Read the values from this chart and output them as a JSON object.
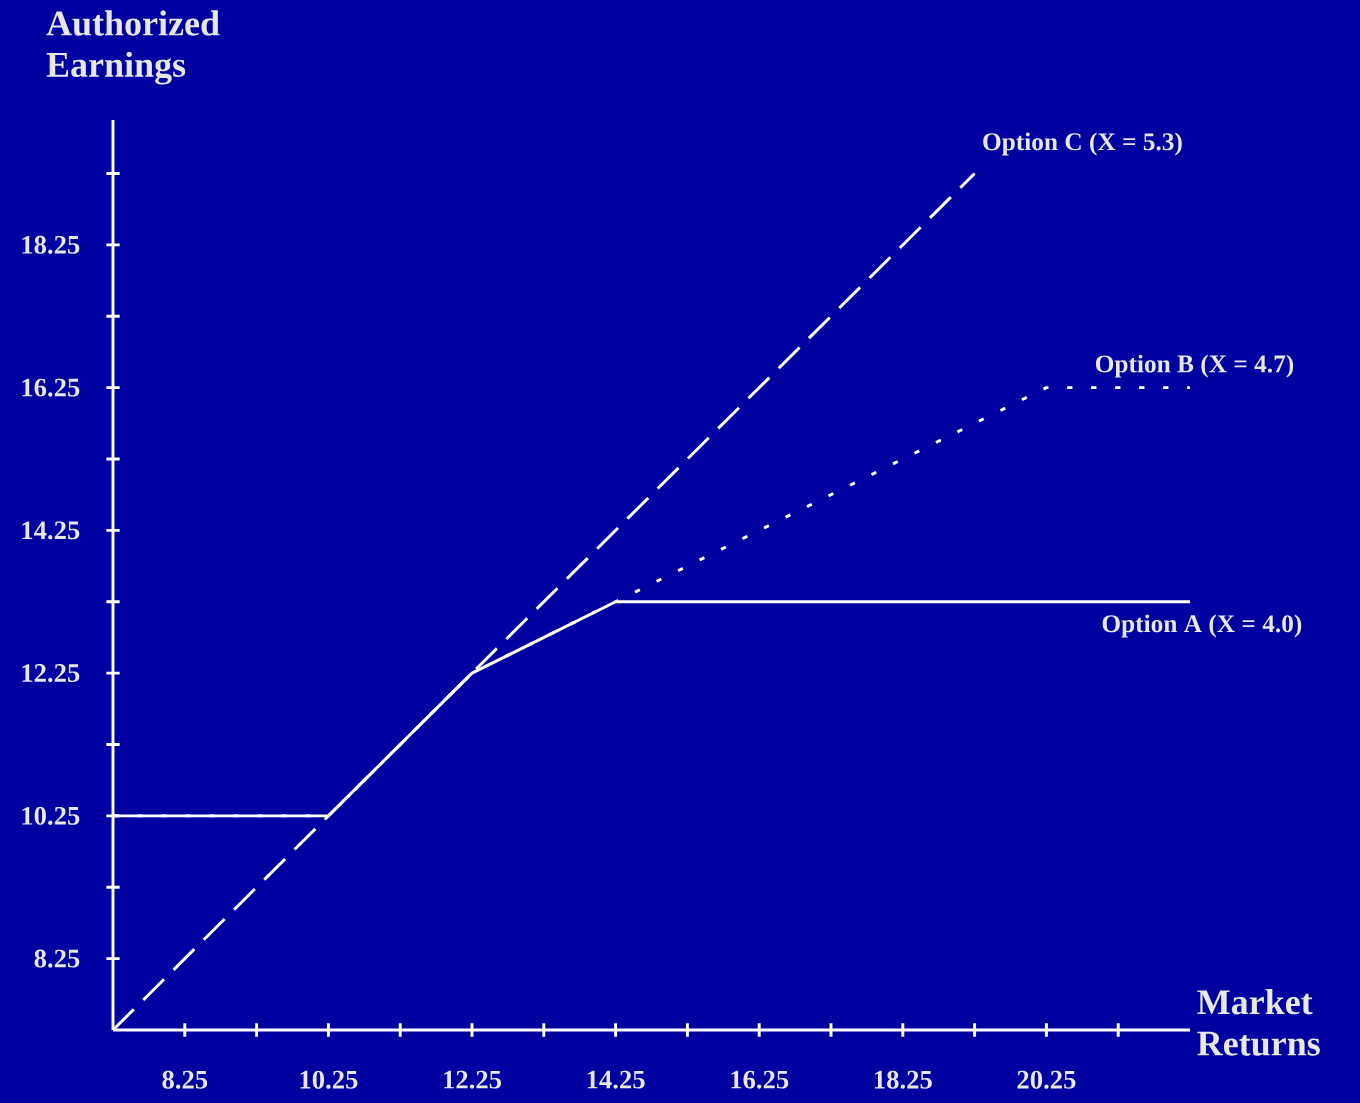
{
  "chart_data": {
    "type": "line",
    "xlabel": "Market Returns",
    "ylabel": "Authorized Earnings",
    "xlim": [
      7.25,
      22.25
    ],
    "ylim": [
      7.25,
      20
    ],
    "xticks": [
      8.25,
      {
        "value": 9.25,
        "label": null
      },
      10.25,
      {
        "value": 11.25,
        "label": null
      },
      12.25,
      {
        "value": 13.25,
        "label": null
      },
      14.25,
      {
        "value": 15.25,
        "label": null
      },
      16.25,
      {
        "value": 17.25,
        "label": null
      },
      18.25,
      {
        "value": 19.25,
        "label": null
      },
      20.25,
      {
        "value": 21.25,
        "label": null
      }
    ],
    "yticks": [
      8.25,
      {
        "value": 9.25,
        "label": null
      },
      10.25,
      {
        "value": 11.25,
        "label": null
      },
      12.25,
      {
        "value": 13.25,
        "label": null
      },
      14.25,
      {
        "value": 15.25,
        "label": null
      },
      16.25,
      {
        "value": 17.25,
        "label": null
      },
      18.25,
      {
        "value": 19.25,
        "label": null
      }
    ],
    "series": [
      {
        "name": "Option A  (X = 4.0)",
        "color": "#ffffff",
        "line_style": "solid",
        "x": [
          7.25,
          10.25,
          12.25,
          14.25,
          22.25
        ],
        "values": [
          10.25,
          10.25,
          12.25,
          13.25,
          13.25
        ]
      },
      {
        "name": "Option B  (X = 4.7)",
        "color": "#ffffff",
        "line_style": "dotted",
        "x": [
          7.25,
          10.25,
          12.25,
          20.25,
          22.25
        ],
        "values": [
          10.25,
          10.25,
          12.25,
          16.25,
          16.25
        ]
      },
      {
        "name": "Option C  (X = 5.3)",
        "color": "#ffffff",
        "line_style": "dashed",
        "x": [
          7.25,
          19.25
        ],
        "values": [
          7.25,
          19.25
        ]
      }
    ]
  }
}
